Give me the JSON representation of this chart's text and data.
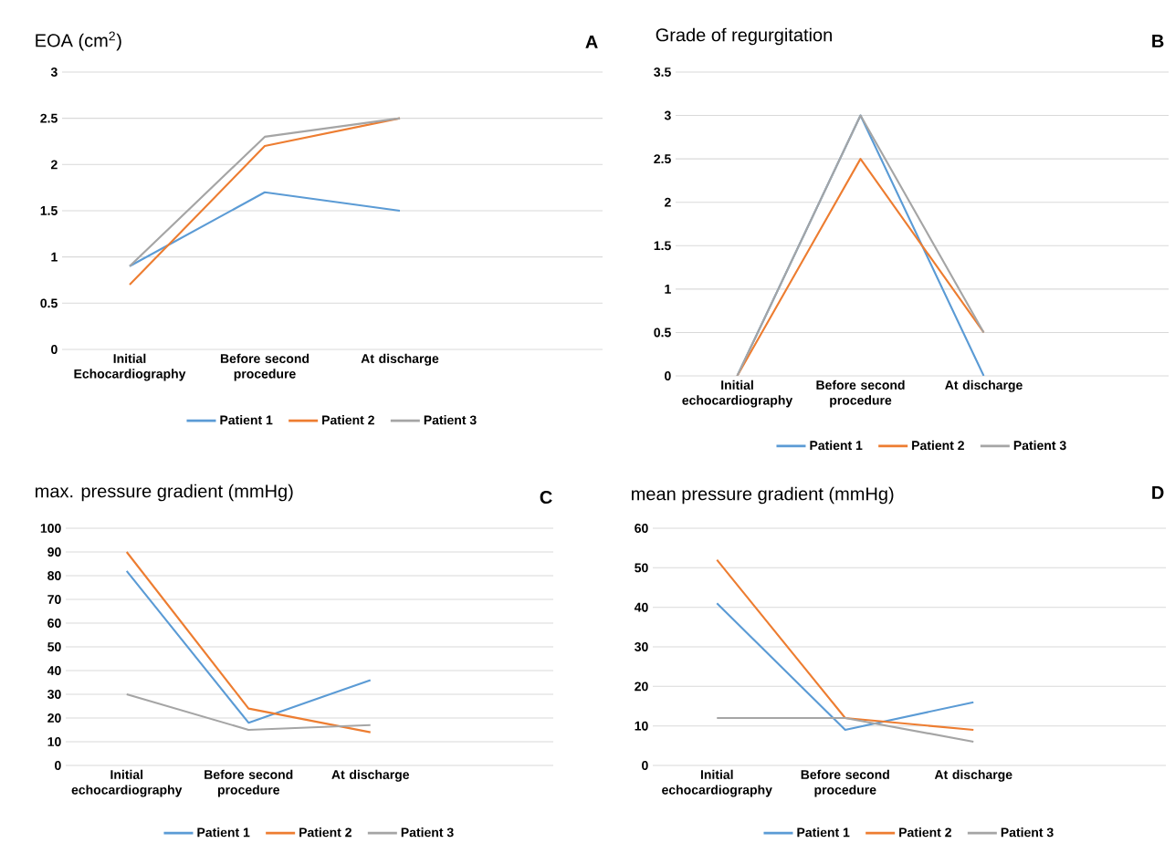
{
  "chart_data": [
    {
      "type": "line",
      "title": "EOA (cm$^{2}$)",
      "annotations": [
        "A"
      ],
      "categories": [
        "Initial Echocardiography",
        "Before second procedure",
        "At discharge",
        null
      ],
      "ylim": [
        0,
        3
      ],
      "yticks": [
        0,
        0.5,
        1,
        1.5,
        2,
        2.5,
        3
      ],
      "grid": "y",
      "legend": "bottom",
      "series": [
        {
          "name": "Patient 1",
          "color": "#5b9bd5",
          "values": [
            0.9,
            1.7,
            1.5,
            null
          ]
        },
        {
          "name": "Patient 2",
          "color": "#ed7d31",
          "values": [
            0.7,
            2.2,
            2.5,
            null
          ]
        },
        {
          "name": "Patient 3",
          "color": "#a5a5a5",
          "values": [
            0.9,
            2.3,
            2.5,
            null
          ]
        }
      ]
    },
    {
      "type": "line",
      "title": "Grade of regurgitation",
      "annotations": [
        "B"
      ],
      "categories": [
        "Initial echocardiography",
        "Before second procedure",
        "At discharge",
        null
      ],
      "ylim": [
        0,
        3.5
      ],
      "yticks": [
        0,
        0.5,
        1,
        1.5,
        2,
        2.5,
        3,
        3.5
      ],
      "grid": "y",
      "legend": "bottom",
      "series": [
        {
          "name": "Patient 1",
          "color": "#5b9bd5",
          "values": [
            0,
            3,
            0,
            null
          ]
        },
        {
          "name": "Patient 2",
          "color": "#ed7d31",
          "values": [
            0,
            2.5,
            0.5,
            null
          ]
        },
        {
          "name": "Patient 3",
          "color": "#a5a5a5",
          "values": [
            0,
            3,
            0.5,
            null
          ]
        }
      ]
    },
    {
      "type": "line",
      "title": "max. pressure gradient (mmHg)",
      "annotations": [
        "C"
      ],
      "categories": [
        "Initial echocardiography",
        "Before second procedure",
        "At discharge",
        null
      ],
      "ylim": [
        0,
        100
      ],
      "yticks": [
        0,
        10,
        20,
        30,
        40,
        50,
        60,
        70,
        80,
        90,
        100
      ],
      "grid": "y",
      "legend": "bottom",
      "series": [
        {
          "name": "Patient 1",
          "color": "#5b9bd5",
          "values": [
            82,
            18,
            36,
            null
          ]
        },
        {
          "name": "Patient 2",
          "color": "#ed7d31",
          "values": [
            90,
            24,
            14,
            null
          ]
        },
        {
          "name": "Patient 3",
          "color": "#a5a5a5",
          "values": [
            30,
            15,
            17,
            null
          ]
        }
      ]
    },
    {
      "type": "line",
      "title": "mean pressure gradient (mmHg)",
      "annotations": [
        "D"
      ],
      "categories": [
        "Initial echocardiography",
        "Before second procedure",
        "At discharge",
        null
      ],
      "ylim": [
        0,
        60
      ],
      "yticks": [
        0,
        10,
        20,
        30,
        40,
        50,
        60
      ],
      "grid": "y",
      "legend": "bottom",
      "series": [
        {
          "name": "Patient 1",
          "color": "#5b9bd5",
          "values": [
            41,
            9,
            16,
            null
          ]
        },
        {
          "name": "Patient 2",
          "color": "#ed7d31",
          "values": [
            52,
            12,
            9,
            null
          ]
        },
        {
          "name": "Patient 3",
          "color": "#a5a5a5",
          "values": [
            12,
            12,
            6,
            null
          ]
        }
      ]
    }
  ]
}
